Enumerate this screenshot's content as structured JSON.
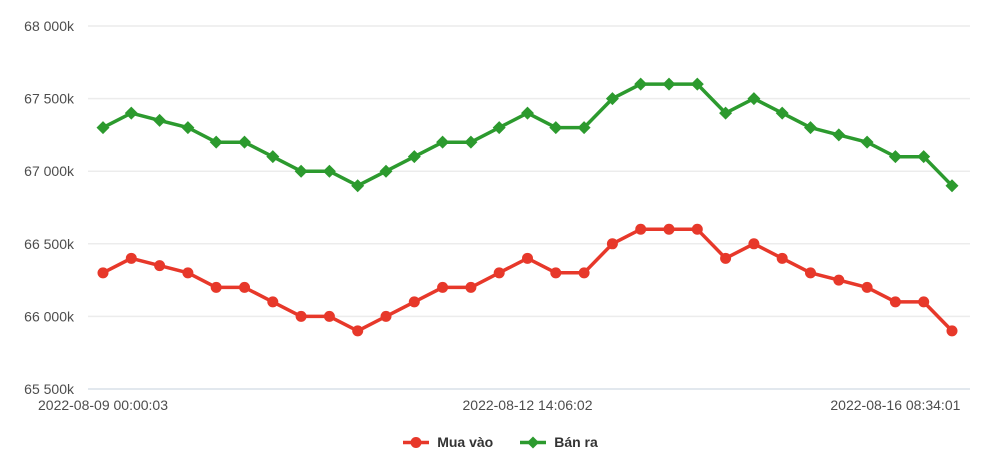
{
  "chart_data": {
    "type": "line",
    "title": "",
    "x_axis": {
      "num_points": 31,
      "tick_labels": [
        {
          "index": 0,
          "label": "2022-08-09 00:00:03"
        },
        {
          "index": 15,
          "label": "2022-08-12 14:06:02"
        },
        {
          "index": 28,
          "label": "2022-08-16 08:34:01"
        }
      ]
    },
    "y_axis": {
      "ticks": [
        68000,
        67500,
        67000,
        66500,
        66000,
        65500
      ],
      "tick_labels": [
        "68 000k",
        "67 500k",
        "67 000k",
        "66 500k",
        "66 000k",
        "65 500k"
      ],
      "ylim": [
        65500,
        68000
      ],
      "unit_suffix": "k"
    },
    "grid": true,
    "legend_position": "bottom",
    "series": [
      {
        "name": "Mua vào",
        "slug": "mua-vao",
        "color": "#e7382a",
        "marker": "circle",
        "values": [
          66300,
          66400,
          66350,
          66300,
          66200,
          66200,
          66100,
          66000,
          66000,
          65900,
          66000,
          66100,
          66200,
          66200,
          66300,
          66400,
          66300,
          66300,
          66500,
          66600,
          66600,
          66600,
          66400,
          66500,
          66400,
          66300,
          66250,
          66200,
          66100,
          66100,
          65900
        ]
      },
      {
        "name": "Bán ra",
        "slug": "ban-ra",
        "color": "#2c9a2e",
        "marker": "diamond",
        "values": [
          67300,
          67400,
          67350,
          67300,
          67200,
          67200,
          67100,
          67000,
          67000,
          66900,
          67000,
          67100,
          67200,
          67200,
          67300,
          67400,
          67300,
          67300,
          67500,
          67600,
          67600,
          67600,
          67400,
          67500,
          67400,
          67300,
          67250,
          67200,
          67100,
          67100,
          66900
        ]
      }
    ]
  },
  "legend": {
    "items": [
      {
        "label": "Mua vào",
        "color": "#e7382a",
        "marker": "circle"
      },
      {
        "label": "Bán ra",
        "color": "#2c9a2e",
        "marker": "diamond"
      }
    ]
  },
  "colors": {
    "background": "#ffffff",
    "gridline": "#ececec",
    "baseline": "#d9e0e8",
    "axis_text": "#4d4d4d",
    "legend_text": "#333333"
  }
}
